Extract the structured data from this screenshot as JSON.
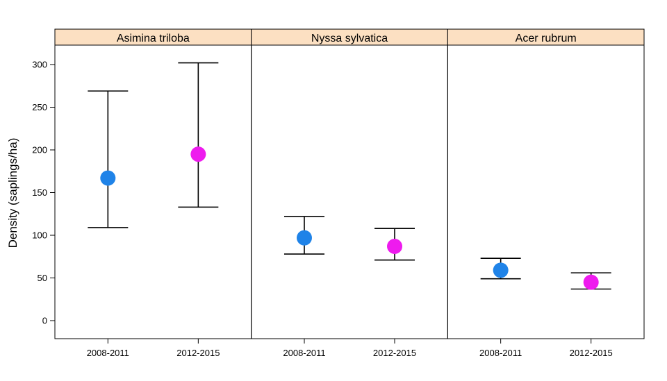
{
  "chart_data": {
    "type": "scatter",
    "subtype": "point-with-error-bars",
    "ylabel": "Density (saplings/ha)",
    "xlabel": "",
    "ylim": [
      -20,
      325
    ],
    "yticks": [
      0,
      50,
      100,
      150,
      200,
      250,
      300
    ],
    "categories": [
      "2008-2011",
      "2012-2015"
    ],
    "colors": {
      "2008-2011": "#1f83e8",
      "2012-2015": "#ee1bee",
      "strip": "#fce0c2"
    },
    "panels": [
      {
        "name": "Asimina triloba",
        "points": [
          {
            "category": "2008-2011",
            "value": 167,
            "lower": 109,
            "upper": 269
          },
          {
            "category": "2012-2015",
            "value": 195,
            "lower": 133,
            "upper": 302
          }
        ]
      },
      {
        "name": "Nyssa sylvatica",
        "points": [
          {
            "category": "2008-2011",
            "value": 97,
            "lower": 78,
            "upper": 122
          },
          {
            "category": "2012-2015",
            "value": 87,
            "lower": 71,
            "upper": 108
          }
        ]
      },
      {
        "name": "Acer rubrum",
        "points": [
          {
            "category": "2008-2011",
            "value": 59,
            "lower": 49,
            "upper": 73
          },
          {
            "category": "2012-2015",
            "value": 45,
            "lower": 37,
            "upper": 56
          }
        ]
      }
    ]
  }
}
